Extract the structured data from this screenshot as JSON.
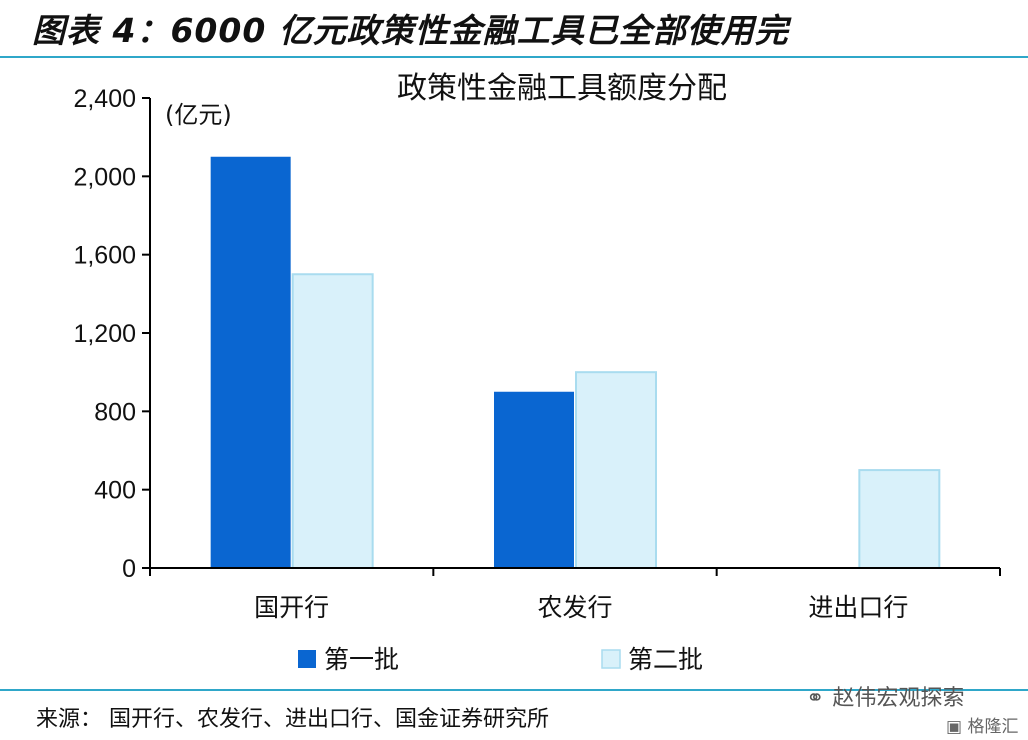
{
  "figure_title": "图表 4：6000 亿元政策性金融工具已全部使用完",
  "source_note": "来源：  国开行、农发行、进出口行、国金证券研究所",
  "watermark": {
    "account": "赵伟宏观探索",
    "site": "格隆汇"
  },
  "colors": {
    "series1": "#0a66d1",
    "series2": "#d9f1fa",
    "series2_border": "#a9dcef",
    "rule": "#2fa7c9"
  },
  "chart_data": {
    "type": "bar",
    "title": "政策性金融工具额度分配",
    "unit_label": "(亿元)",
    "categories": [
      "国开行",
      "农发行",
      "进出口行"
    ],
    "series": [
      {
        "name": "第一批",
        "values": [
          2100,
          900,
          0
        ]
      },
      {
        "name": "第二批",
        "values": [
          1500,
          1000,
          500
        ]
      }
    ],
    "ylim": [
      0,
      2400
    ],
    "yticks": [
      0,
      400,
      800,
      1200,
      1600,
      2000,
      2400
    ],
    "ytick_labels": [
      "0",
      "400",
      "800",
      "1,200",
      "1,600",
      "2,000",
      "2,400"
    ],
    "grid": false,
    "legend_position": "bottom"
  }
}
